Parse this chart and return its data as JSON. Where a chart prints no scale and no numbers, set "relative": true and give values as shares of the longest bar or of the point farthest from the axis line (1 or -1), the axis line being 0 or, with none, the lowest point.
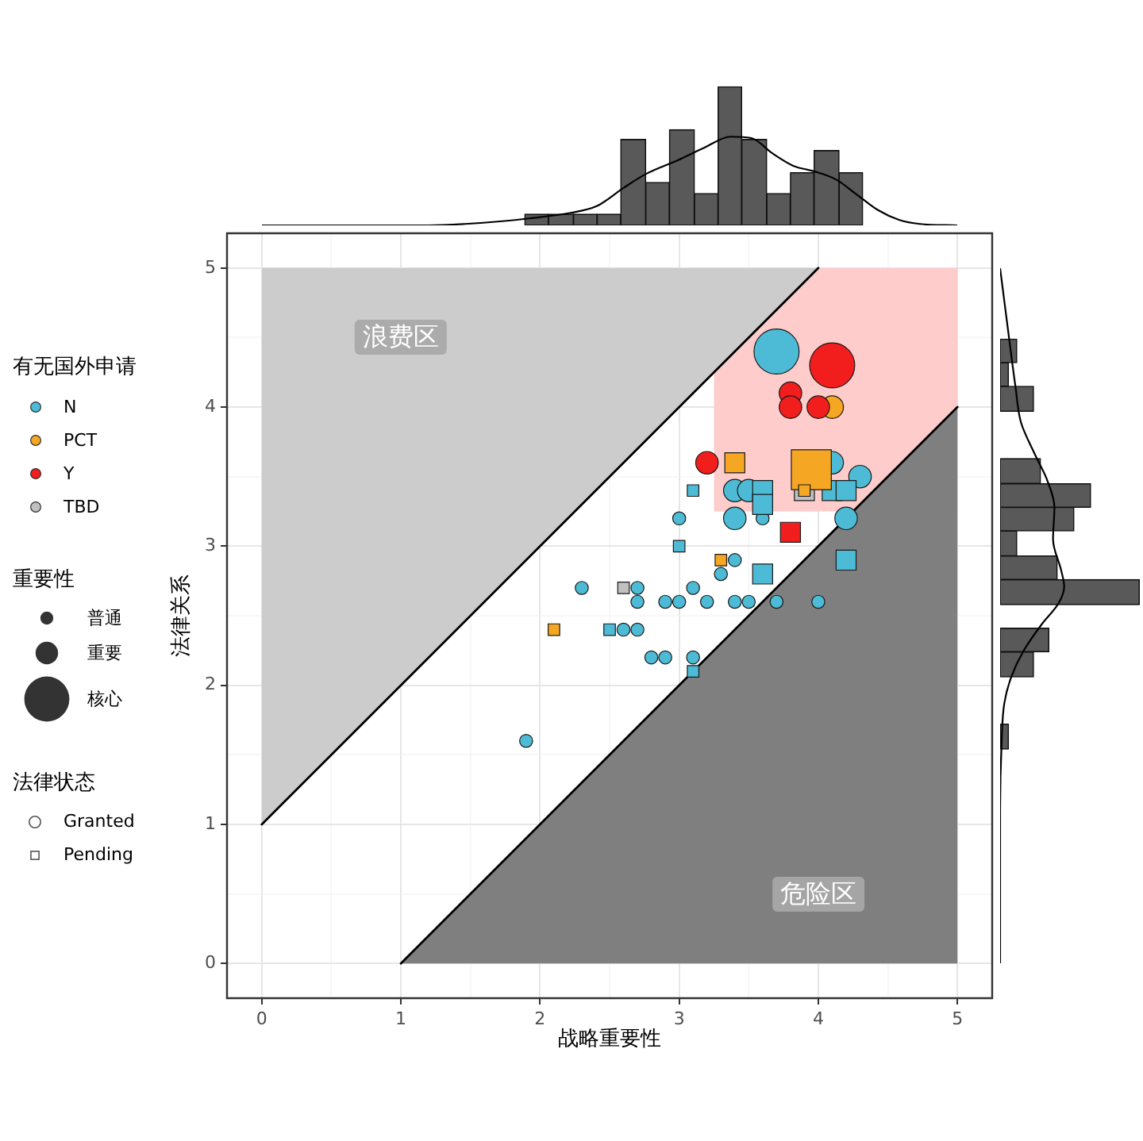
{
  "chart_data": [
    {
      "type": "histogram",
      "relative": true,
      "xticks": [
        0,
        1,
        2,
        3,
        4,
        5
      ],
      "tick_labels": false,
      "series": [
        {
          "type": "histogram",
          "bins": [
            1.89,
            2.06,
            2.24,
            2.41,
            2.58,
            2.76,
            2.93,
            3.11,
            3.28,
            3.45,
            3.63,
            3.8,
            3.97,
            4.15,
            4.32
          ],
          "values": [
            0.08,
            0.08,
            0.08,
            0.08,
            0.62,
            0.31,
            0.69,
            0.23,
            1,
            0.62,
            0.23,
            0.38,
            0.54,
            0.38
          ],
          "color": "#595959"
        },
        {
          "type": "line",
          "x": [
            0,
            1.2,
            1.46,
            1.73,
            1.92,
            2.22,
            2.41,
            2.6,
            2.76,
            2.99,
            3.18,
            3.37,
            3.52,
            3.67,
            3.82,
            3.97,
            4.13,
            4.28,
            4.43,
            4.58,
            4.73,
            5
          ],
          "values": [
            0,
            0,
            0.01,
            0.03,
            0.05,
            0.09,
            0.14,
            0.27,
            0.37,
            0.47,
            0.56,
            0.64,
            0.63,
            0.52,
            0.43,
            0.39,
            0.33,
            0.22,
            0.11,
            0.04,
            0.01,
            0
          ],
          "color": "#000000"
        }
      ]
    },
    {
      "type": "bubble",
      "xlabel": "战略重要性",
      "ylabel": "法律关系",
      "xlim": [
        -0.25,
        5.25
      ],
      "ylim": [
        -0.25,
        5.25
      ],
      "xticks": [
        0,
        {
          "value": 0.5,
          "label": null
        },
        1,
        {
          "value": 1.5,
          "label": null
        },
        2,
        {
          "value": 2.5,
          "label": null
        },
        3,
        {
          "value": 3.5,
          "label": null
        },
        4,
        {
          "value": 4.5,
          "label": null
        },
        5
      ],
      "yticks": [
        0,
        {
          "value": 0.5,
          "label": null
        },
        1,
        {
          "value": 1.5,
          "label": null
        },
        2,
        {
          "value": 2.5,
          "label": null
        },
        3,
        {
          "value": 3.5,
          "label": null
        },
        4,
        {
          "value": 4.5,
          "label": null
        },
        5
      ],
      "grid": true,
      "legend": "left",
      "legend_title": "有无国外申请",
      "size_legend": [
        {
          "value": 1,
          "label": "普通"
        },
        {
          "value": 3,
          "label": "重要"
        },
        {
          "value": 12,
          "label": "核心"
        }
      ],
      "annotations": [
        "浪费区",
        "危险区",
        "重要性",
        "法律状态",
        "Granted",
        "Pending"
      ],
      "series": [
        {
          "type": "line",
          "x": [
            3.25,
            5
          ],
          "values": [
            null,
            null
          ],
          "lower": [
            3.25,
            3.25
          ],
          "upper": [
            5,
            5
          ],
          "color": "#ffcccc"
        },
        {
          "type": "line",
          "x": [
            0,
            4
          ],
          "values": [
            null,
            null
          ],
          "lower": [
            1,
            5
          ],
          "upper": [
            5,
            5
          ],
          "color": "#cccccc"
        },
        {
          "type": "line",
          "x": [
            1,
            5
          ],
          "values": [
            null,
            null
          ],
          "lower": [
            0,
            0
          ],
          "upper": [
            0,
            4
          ],
          "color": "#7f7f7f"
        },
        {
          "type": "line",
          "x": [
            0,
            4
          ],
          "values": [
            1,
            5
          ],
          "color": "#000000"
        },
        {
          "type": "line",
          "x": [
            1,
            5
          ],
          "values": [
            0,
            4
          ],
          "color": "#000000"
        },
        {
          "name": "N",
          "color": "#4dbbd5",
          "marker": "circle",
          "x": [
            3.7,
            4.1,
            4.3,
            3.4,
            3.5,
            3.4,
            4.2,
            3.6,
            3.0,
            3.4,
            3.3,
            2.3,
            2.7,
            3.1,
            2.7,
            2.9,
            3.0,
            3.2,
            3.4,
            3.5,
            3.7,
            4.0,
            2.6,
            2.7,
            2.8,
            2.9,
            3.1,
            1.9
          ],
          "values": [
            4.4,
            3.6,
            3.5,
            3.4,
            3.4,
            3.2,
            3.2,
            3.2,
            3.2,
            2.9,
            2.8,
            2.7,
            2.7,
            2.7,
            2.6,
            2.6,
            2.6,
            2.6,
            2.6,
            2.6,
            2.6,
            2.6,
            2.4,
            2.4,
            2.2,
            2.2,
            2.2,
            1.6
          ],
          "sizes": [
            12,
            3,
            3,
            3,
            3,
            3,
            3,
            1,
            1,
            1,
            1,
            1,
            1,
            1,
            1,
            1,
            1,
            1,
            1,
            1,
            1,
            1,
            1,
            1,
            1,
            1,
            1,
            1
          ]
        },
        {
          "color": "#4dbbd5",
          "marker": "square",
          "x": [
            4.1,
            4.2,
            3.6,
            3.6,
            3.6,
            4.2,
            3.1,
            3.0,
            2.5,
            3.1
          ],
          "values": [
            3.4,
            3.4,
            3.4,
            3.3,
            2.8,
            2.9,
            3.4,
            3.0,
            2.4,
            2.1
          ],
          "sizes": [
            3,
            3,
            3,
            3,
            3,
            3,
            1,
            1,
            1,
            1
          ]
        },
        {
          "name": "PCT",
          "color": "#f5a623",
          "marker": "circle",
          "x": [
            4.1
          ],
          "values": [
            4.0
          ],
          "sizes": [
            3
          ]
        },
        {
          "name": "Y",
          "color": "#f21d1d",
          "marker": "circle",
          "x": [
            4.1,
            3.8,
            3.8,
            4.0,
            3.2
          ],
          "values": [
            4.3,
            4.1,
            4.0,
            4.0,
            3.6
          ],
          "sizes": [
            12,
            3,
            3,
            3,
            3
          ]
        },
        {
          "color": "#f21d1d",
          "marker": "square",
          "x": [
            3.8
          ],
          "values": [
            3.1
          ],
          "sizes": [
            3
          ]
        },
        {
          "name": "TBD",
          "color": "#c0c0c0",
          "marker": "square",
          "x": [
            3.9,
            2.6
          ],
          "values": [
            3.4,
            2.7
          ],
          "sizes": [
            3,
            1
          ]
        },
        {
          "color": "#f5a623",
          "marker": "square",
          "x": [
            3.95,
            3.4,
            3.9,
            3.3,
            2.1
          ],
          "values": [
            3.55,
            3.6,
            3.4,
            2.9,
            2.4
          ],
          "sizes": [
            12,
            3,
            1,
            1,
            1
          ]
        }
      ]
    },
    {
      "type": "histogram",
      "relative": true,
      "orientation": "horizontal",
      "yticks": [
        0,
        1,
        2,
        3,
        4,
        5
      ],
      "tick_labels": false,
      "series": [
        {
          "type": "histogram",
          "bins": [
            1.54,
            1.72,
            1.89,
            2.06,
            2.24,
            2.41,
            2.58,
            2.76,
            2.93,
            3.11,
            3.28,
            3.45,
            3.63,
            3.8,
            3.97,
            4.15,
            4.32,
            4.49
          ],
          "values": [
            0.06,
            0,
            0,
            0.24,
            0.35,
            0,
            1,
            0.41,
            0.12,
            0.53,
            0.65,
            0.29,
            0,
            0,
            0.24,
            0.06,
            0.12
          ],
          "color": "#595959"
        },
        {
          "type": "line",
          "x": [
            0,
            1.11,
            1.56,
            1.87,
            2.06,
            2.25,
            2.44,
            2.59,
            2.71,
            2.82,
            3.05,
            3.28,
            3.47,
            3.66,
            3.89,
            4.15,
            4.53,
            5
          ],
          "values": [
            0,
            0,
            0.01,
            0.03,
            0.08,
            0.17,
            0.3,
            0.42,
            0.46,
            0.44,
            0.38,
            0.39,
            0.34,
            0.25,
            0.15,
            0.11,
            0.06,
            0
          ],
          "color": "#000000"
        }
      ]
    }
  ]
}
